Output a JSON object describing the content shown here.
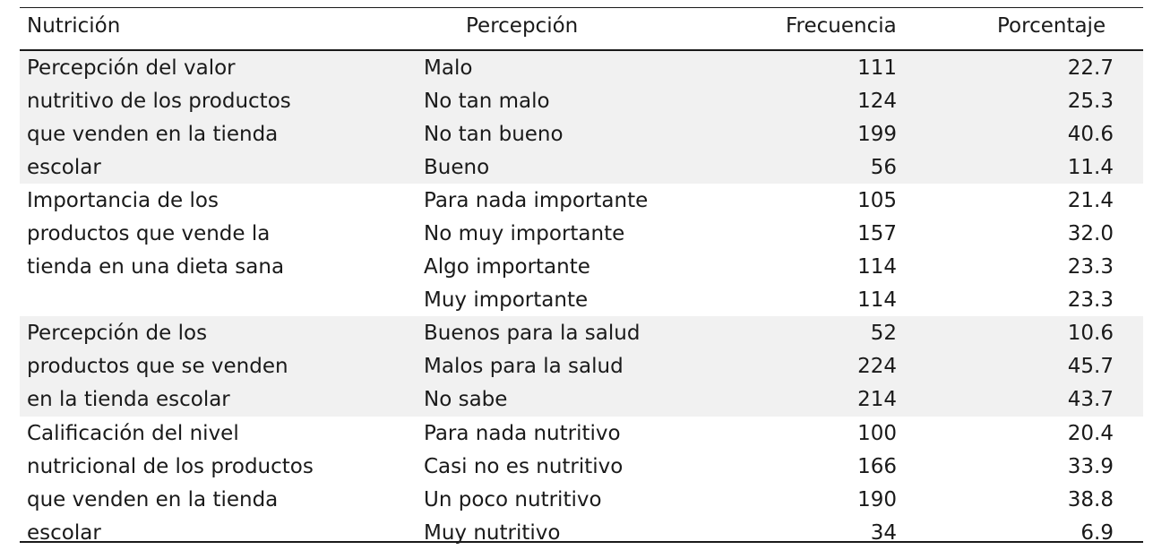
{
  "headers": {
    "nutricion": "Nutrición",
    "percepcion": "Percepción",
    "frecuencia": "Frecuencia",
    "porcentaje": "Porcentaje"
  },
  "groups": [
    {
      "category_lines": [
        "Percepción del valor",
        "nutritivo de los productos",
        "que venden en la tienda",
        "escolar"
      ],
      "rows": [
        {
          "percepcion": "Malo",
          "frecuencia": "111",
          "porcentaje": "22.7"
        },
        {
          "percepcion": "No tan malo",
          "frecuencia": "124",
          "porcentaje": "25.3"
        },
        {
          "percepcion": "No tan bueno",
          "frecuencia": "199",
          "porcentaje": "40.6"
        },
        {
          "percepcion": "Bueno",
          "frecuencia": "56",
          "porcentaje": "11.4"
        }
      ]
    },
    {
      "category_lines": [
        "Importancia de los",
        "productos que vende la",
        "tienda en una dieta sana"
      ],
      "rows": [
        {
          "percepcion": "Para nada importante",
          "frecuencia": "105",
          "porcentaje": "21.4"
        },
        {
          "percepcion": "No muy importante",
          "frecuencia": "157",
          "porcentaje": "32.0"
        },
        {
          "percepcion": "Algo importante",
          "frecuencia": "114",
          "porcentaje": "23.3"
        },
        {
          "percepcion": "Muy importante",
          "frecuencia": "114",
          "porcentaje": "23.3"
        }
      ]
    },
    {
      "category_lines": [
        "Percepción de los",
        "productos que se venden",
        "en la tienda escolar"
      ],
      "rows": [
        {
          "percepcion": "Buenos para la salud",
          "frecuencia": "52",
          "porcentaje": "10.6"
        },
        {
          "percepcion": "Malos para la salud",
          "frecuencia": "224",
          "porcentaje": "45.7"
        },
        {
          "percepcion": "No sabe",
          "frecuencia": "214",
          "porcentaje": "43.7"
        }
      ]
    },
    {
      "category_lines": [
        "Calificación del nivel",
        "nutricional de los productos",
        "que venden en la tienda",
        "escolar"
      ],
      "rows": [
        {
          "percepcion": "Para nada nutritivo",
          "frecuencia": "100",
          "porcentaje": "20.4"
        },
        {
          "percepcion": "Casi no es nutritivo",
          "frecuencia": "166",
          "porcentaje": "33.9"
        },
        {
          "percepcion": "Un poco nutritivo",
          "frecuencia": "190",
          "porcentaje": "38.8"
        },
        {
          "percepcion": "Muy nutritivo",
          "frecuencia": "34",
          "porcentaje": "6.9"
        }
      ]
    }
  ]
}
